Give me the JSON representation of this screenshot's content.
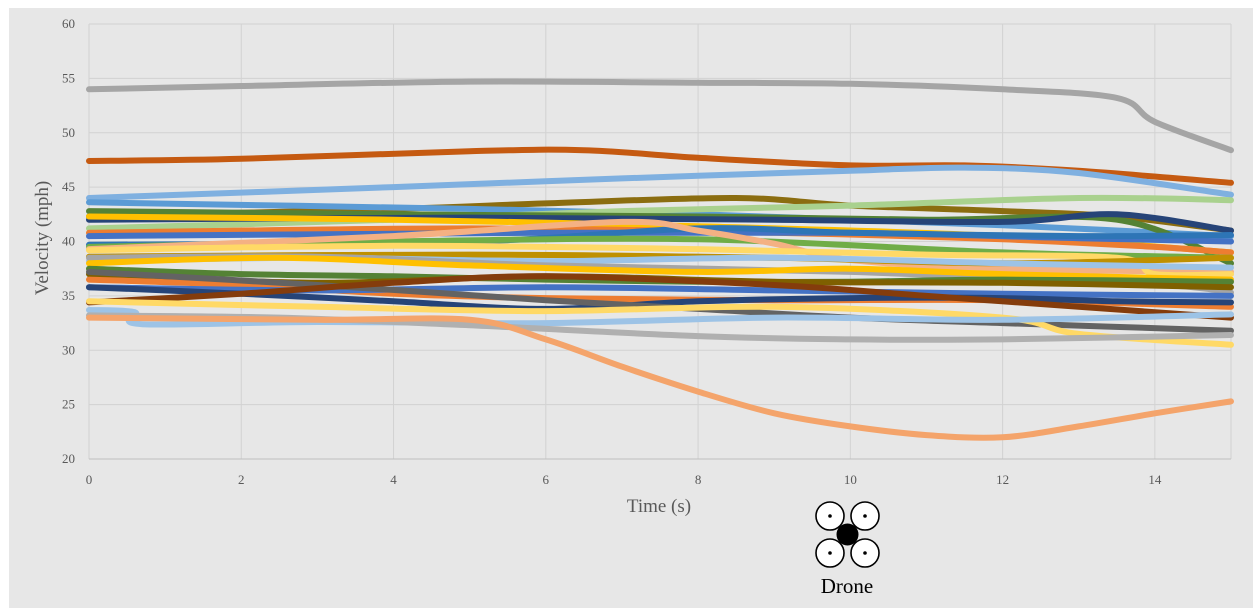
{
  "chart_data": {
    "type": "line",
    "xlabel": "Time (s)",
    "ylabel": "Velocity (mph)",
    "xlim": [
      0,
      15
    ],
    "ylim": [
      20,
      60
    ],
    "x_ticks": [
      0,
      2,
      4,
      6,
      8,
      10,
      12,
      14
    ],
    "y_ticks": [
      20,
      25,
      30,
      35,
      40,
      45,
      50,
      55,
      60
    ],
    "grid": true,
    "legend": "none",
    "series": [
      {
        "color": "#A5A5A5",
        "points": [
          [
            0,
            54
          ],
          [
            2,
            54.3
          ],
          [
            5,
            54.7
          ],
          [
            8,
            54.6
          ],
          [
            10,
            54.5
          ],
          [
            12,
            54
          ],
          [
            13.5,
            53.2
          ],
          [
            14,
            51
          ],
          [
            15,
            48.4
          ]
        ]
      },
      {
        "color": "#C55A11",
        "points": [
          [
            0,
            47.4
          ],
          [
            2,
            47.6
          ],
          [
            5,
            48.3
          ],
          [
            6.5,
            48.4
          ],
          [
            8,
            47.7
          ],
          [
            10,
            47
          ],
          [
            11.5,
            47
          ],
          [
            13,
            46.5
          ],
          [
            15,
            45.4
          ]
        ]
      },
      {
        "color": "#7FB0E0",
        "points": [
          [
            0,
            44
          ],
          [
            4,
            45
          ],
          [
            7,
            45.8
          ],
          [
            10,
            46.5
          ],
          [
            11.5,
            46.8
          ],
          [
            13,
            46.3
          ],
          [
            15,
            44.3
          ]
        ]
      },
      {
        "color": "#8B6D10",
        "points": [
          [
            0,
            42.3
          ],
          [
            4,
            43
          ],
          [
            6,
            43.5
          ],
          [
            8.5,
            44
          ],
          [
            10,
            43.3
          ],
          [
            12,
            42.8
          ],
          [
            13.5,
            42.3
          ],
          [
            15,
            41
          ]
        ]
      },
      {
        "color": "#5B9BD5",
        "points": [
          [
            0,
            43.6
          ],
          [
            5,
            43
          ],
          [
            8,
            42.5
          ],
          [
            10,
            42
          ],
          [
            12,
            41.5
          ],
          [
            15,
            40.5
          ]
        ]
      },
      {
        "color": "#A9D18E",
        "points": [
          [
            0,
            41.2
          ],
          [
            4,
            42
          ],
          [
            7,
            42.8
          ],
          [
            10,
            43.3
          ],
          [
            13,
            44
          ],
          [
            15,
            43.8
          ]
        ]
      },
      {
        "color": "#548235",
        "points": [
          [
            0,
            42.8
          ],
          [
            4,
            42.5
          ],
          [
            8,
            42.3
          ],
          [
            11,
            42
          ],
          [
            13.5,
            42
          ],
          [
            15,
            38
          ]
        ]
      },
      {
        "color": "#264478",
        "points": [
          [
            0,
            42
          ],
          [
            5,
            42.2
          ],
          [
            9,
            42
          ],
          [
            12,
            41.8
          ],
          [
            13.5,
            42.5
          ],
          [
            15,
            41
          ]
        ]
      },
      {
        "color": "#FFC000",
        "points": [
          [
            0,
            42.3
          ],
          [
            4,
            42
          ],
          [
            8,
            41.4
          ],
          [
            12,
            40.5
          ],
          [
            15,
            39
          ]
        ]
      },
      {
        "color": "#ED7D31",
        "points": [
          [
            0,
            40.8
          ],
          [
            5,
            41.2
          ],
          [
            9,
            40.8
          ],
          [
            12,
            40.2
          ],
          [
            14,
            39.5
          ],
          [
            15,
            39
          ]
        ]
      },
      {
        "color": "#4472C4",
        "points": [
          [
            0,
            40.5
          ],
          [
            6,
            40.8
          ],
          [
            10,
            40.8
          ],
          [
            13,
            40.3
          ],
          [
            15,
            40
          ]
        ]
      },
      {
        "color": "#2E75B6",
        "points": [
          [
            0,
            39.7
          ],
          [
            5,
            40
          ],
          [
            8,
            41.2
          ],
          [
            10,
            40.8
          ],
          [
            13,
            40.5
          ],
          [
            15,
            40.6
          ]
        ]
      },
      {
        "color": "#70AD47",
        "points": [
          [
            0,
            39.5
          ],
          [
            4,
            40
          ],
          [
            8,
            40.2
          ],
          [
            12,
            39
          ],
          [
            15,
            38.5
          ]
        ]
      },
      {
        "color": "#F4B183",
        "points": [
          [
            0,
            39.3
          ],
          [
            4,
            40.5
          ],
          [
            7,
            41.8
          ],
          [
            8,
            41
          ],
          [
            9,
            39.8
          ],
          [
            10,
            38.3
          ],
          [
            12,
            37.5
          ],
          [
            15,
            37.2
          ]
        ]
      },
      {
        "color": "#FFD966",
        "points": [
          [
            0,
            39.2
          ],
          [
            4,
            39.6
          ],
          [
            8,
            39.3
          ],
          [
            11,
            38.8
          ],
          [
            13.5,
            38.5
          ],
          [
            14,
            37
          ],
          [
            15,
            37
          ]
        ]
      },
      {
        "color": "#BF9000",
        "points": [
          [
            0,
            38.6
          ],
          [
            5,
            38.8
          ],
          [
            9,
            38.5
          ],
          [
            12,
            38
          ],
          [
            15,
            38.5
          ]
        ]
      },
      {
        "color": "#9DC3E6",
        "points": [
          [
            0,
            38.2
          ],
          [
            3,
            38.5
          ],
          [
            6,
            38.2
          ],
          [
            9,
            38.5
          ],
          [
            12,
            38
          ],
          [
            15,
            37.6
          ]
        ]
      },
      {
        "color": "#A5A5A5",
        "points": [
          [
            0,
            38.5
          ],
          [
            3,
            38.6
          ],
          [
            6,
            37.8
          ],
          [
            10,
            37.2
          ],
          [
            13.5,
            36.2
          ],
          [
            14.5,
            35.8
          ],
          [
            15,
            35.3
          ]
        ]
      },
      {
        "color": "#FFC000",
        "points": [
          [
            0,
            38
          ],
          [
            2.5,
            38.5
          ],
          [
            5,
            37.8
          ],
          [
            8,
            37.2
          ],
          [
            10,
            37.5
          ],
          [
            12,
            37
          ],
          [
            15,
            36.5
          ]
        ]
      },
      {
        "color": "#548235",
        "points": [
          [
            0,
            37.5
          ],
          [
            2,
            37
          ],
          [
            4,
            36.8
          ],
          [
            6,
            36.5
          ],
          [
            8,
            36.3
          ],
          [
            10,
            36.3
          ],
          [
            12,
            36.5
          ],
          [
            15,
            36.3
          ]
        ]
      },
      {
        "color": "#7F6000",
        "points": [
          [
            0,
            37
          ],
          [
            3,
            36.2
          ],
          [
            6,
            36.8
          ],
          [
            9,
            36.3
          ],
          [
            12,
            36.2
          ],
          [
            15,
            35.8
          ]
        ]
      },
      {
        "color": "#ED7D31",
        "points": [
          [
            0,
            36.5
          ],
          [
            2,
            36
          ],
          [
            4,
            35.2
          ],
          [
            6,
            34.8
          ],
          [
            9,
            34.6
          ],
          [
            12,
            34.6
          ],
          [
            15,
            34
          ]
        ]
      },
      {
        "color": "#4472C4",
        "points": [
          [
            0,
            35.8
          ],
          [
            3,
            35.5
          ],
          [
            6,
            35.8
          ],
          [
            9,
            35.5
          ],
          [
            12,
            35.2
          ],
          [
            15,
            35
          ]
        ]
      },
      {
        "color": "#264478",
        "points": [
          [
            0,
            35.8
          ],
          [
            2,
            35.2
          ],
          [
            4,
            34.5
          ],
          [
            6,
            33.8
          ],
          [
            8,
            34.5
          ],
          [
            10,
            34.8
          ],
          [
            12,
            34.8
          ],
          [
            13.5,
            34.5
          ],
          [
            15,
            34.4
          ]
        ]
      },
      {
        "color": "#636363",
        "points": [
          [
            0,
            37.2
          ],
          [
            3,
            36
          ],
          [
            6,
            34.6
          ],
          [
            8,
            33.8
          ],
          [
            10,
            33
          ],
          [
            12,
            32.5
          ],
          [
            15,
            31.8
          ]
        ]
      },
      {
        "color": "#843C0C",
        "points": [
          [
            0,
            34.4
          ],
          [
            2,
            35.2
          ],
          [
            4,
            36.2
          ],
          [
            6,
            36.8
          ],
          [
            9,
            36
          ],
          [
            11,
            35
          ],
          [
            13,
            34
          ],
          [
            15,
            33
          ]
        ]
      },
      {
        "color": "#FFD966",
        "points": [
          [
            0,
            34.5
          ],
          [
            3,
            34
          ],
          [
            6,
            33.6
          ],
          [
            9,
            34
          ],
          [
            12,
            33
          ],
          [
            13,
            31.5
          ],
          [
            15,
            30.5
          ]
        ]
      },
      {
        "color": "#9DC3E6",
        "points": [
          [
            0,
            33.7
          ],
          [
            0.6,
            33.5
          ],
          [
            0.7,
            32.4
          ],
          [
            3,
            32.6
          ],
          [
            6,
            32.5
          ],
          [
            9,
            33
          ],
          [
            12,
            32.8
          ],
          [
            15,
            33.3
          ]
        ]
      },
      {
        "color": "#B0B0B0",
        "points": [
          [
            0,
            33.2
          ],
          [
            2.5,
            33
          ],
          [
            5,
            32.3
          ],
          [
            8,
            31.3
          ],
          [
            10,
            31
          ],
          [
            12,
            31
          ],
          [
            15,
            31.4
          ]
        ]
      },
      {
        "color": "#F4A46B",
        "points": [
          [
            0,
            33
          ],
          [
            3,
            32.8
          ],
          [
            5,
            32.8
          ],
          [
            6,
            31
          ],
          [
            7,
            28.5
          ],
          [
            8,
            26.2
          ],
          [
            9,
            24.2
          ],
          [
            10,
            23
          ],
          [
            11,
            22.2
          ],
          [
            12,
            22
          ],
          [
            13,
            23
          ],
          [
            14,
            24.2
          ],
          [
            15,
            25.3
          ]
        ]
      }
    ]
  },
  "drone": {
    "label": "Drone",
    "icon": "quadcopter-icon"
  }
}
